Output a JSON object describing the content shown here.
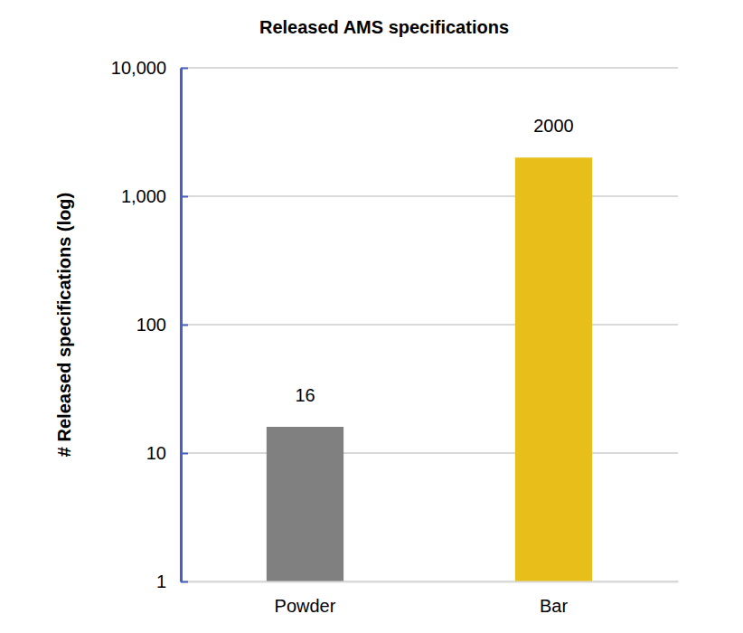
{
  "chart_data": {
    "type": "bar",
    "title": "Released AMS specifications",
    "y_label": "# Released specifications (log)",
    "categories": [
      "Powder",
      "Bar"
    ],
    "values": [
      16,
      2000
    ],
    "colors": [
      "#808080",
      "#e8bf1a"
    ],
    "log": "y",
    "ylim": [
      1,
      10000
    ],
    "yticks": [
      1,
      10,
      100,
      {
        "value": 1000,
        "label": "1,000"
      },
      {
        "value": 10000,
        "label": "10,000"
      }
    ],
    "grid": true,
    "data_labels": true
  }
}
